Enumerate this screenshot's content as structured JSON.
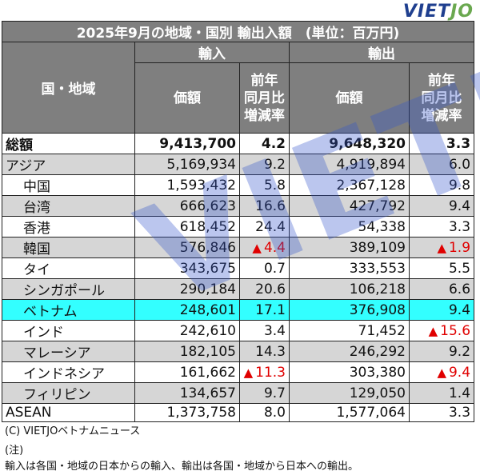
{
  "logo": {
    "part1": "VIET",
    "part2": "JO"
  },
  "table": {
    "title": "2025年9月の地域・国別 輸出入額　(単位：百万円)",
    "region_header": "国・地域",
    "import_header": "輸入",
    "export_header": "輸出",
    "value_header": "価額",
    "yoy_header_lines": [
      "前年",
      "同月比",
      "増減率"
    ],
    "rows": [
      {
        "name": "総額",
        "imp": "9,413,700",
        "imp_yoy": "4.2",
        "imp_neg": false,
        "exp": "9,648,320",
        "exp_yoy": "3.3",
        "exp_neg": false
      },
      {
        "name": "アジア",
        "imp": "5,169,934",
        "imp_yoy": "9.2",
        "imp_neg": false,
        "exp": "4,919,894",
        "exp_yoy": "6.0",
        "exp_neg": false
      },
      {
        "name": "中国",
        "imp": "1,593,432",
        "imp_yoy": "5.8",
        "imp_neg": false,
        "exp": "2,367,128",
        "exp_yoy": "9.8",
        "exp_neg": false
      },
      {
        "name": "台湾",
        "imp": "666,623",
        "imp_yoy": "16.6",
        "imp_neg": false,
        "exp": "427,792",
        "exp_yoy": "9.4",
        "exp_neg": false
      },
      {
        "name": "香港",
        "imp": "618,452",
        "imp_yoy": "24.4",
        "imp_neg": false,
        "exp": "54,338",
        "exp_yoy": "3.3",
        "exp_neg": false
      },
      {
        "name": "韓国",
        "imp": "576,846",
        "imp_yoy": "4.4",
        "imp_neg": true,
        "exp": "389,109",
        "exp_yoy": "1.9",
        "exp_neg": true
      },
      {
        "name": "タイ",
        "imp": "343,675",
        "imp_yoy": "0.7",
        "imp_neg": false,
        "exp": "333,553",
        "exp_yoy": "5.5",
        "exp_neg": false
      },
      {
        "name": "シンガポール",
        "imp": "290,184",
        "imp_yoy": "20.6",
        "imp_neg": false,
        "exp": "106,218",
        "exp_yoy": "6.6",
        "exp_neg": false
      },
      {
        "name": "ベトナム",
        "imp": "248,601",
        "imp_yoy": "17.1",
        "imp_neg": false,
        "exp": "376,908",
        "exp_yoy": "9.4",
        "exp_neg": false
      },
      {
        "name": "インド",
        "imp": "242,610",
        "imp_yoy": "3.4",
        "imp_neg": false,
        "exp": "71,452",
        "exp_yoy": "15.6",
        "exp_neg": true
      },
      {
        "name": "マレーシア",
        "imp": "182,105",
        "imp_yoy": "14.3",
        "imp_neg": false,
        "exp": "246,292",
        "exp_yoy": "9.2",
        "exp_neg": false
      },
      {
        "name": "インドネシア",
        "imp": "161,662",
        "imp_yoy": "11.3",
        "imp_neg": true,
        "exp": "303,380",
        "exp_yoy": "9.4",
        "exp_neg": true
      },
      {
        "name": "フィリピン",
        "imp": "134,657",
        "imp_yoy": "9.7",
        "imp_neg": false,
        "exp": "129,050",
        "exp_yoy": "1.4",
        "exp_neg": false
      },
      {
        "name": "ASEAN",
        "imp": "1,373,758",
        "imp_yoy": "8.0",
        "imp_neg": false,
        "exp": "1,577,064",
        "exp_yoy": "3.3",
        "exp_neg": false
      }
    ],
    "negative_mark": "▲",
    "colors": {
      "header_bg": "#7f7f7f",
      "gray_row": "#d6d6d6",
      "highlight_row": "#33ffff",
      "negative": "#e00000"
    }
  },
  "watermark": "VIETJO",
  "footer": {
    "credit": "(C) VIETJOベトナムニュース",
    "note_label": "(注)",
    "note_text": "輸入は各国・地域の日本からの輸入、輸出は各国・地域から日本への輸出。"
  }
}
